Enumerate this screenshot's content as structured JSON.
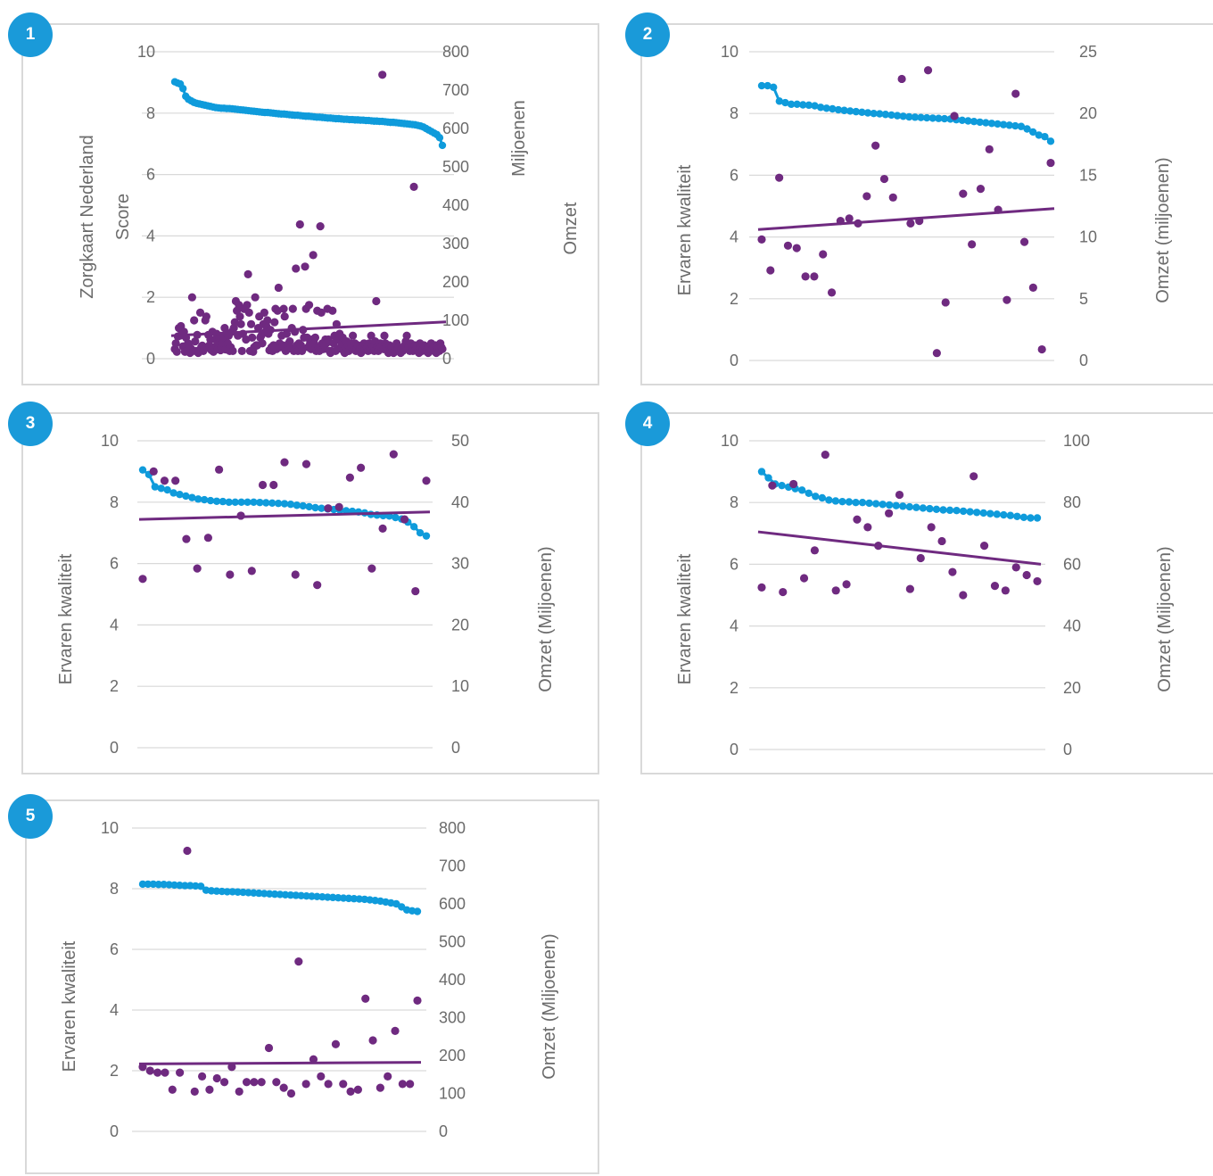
{
  "colors": {
    "quality": "#0f9bdb",
    "revenue": "#6f2a80",
    "grid": "#d9d9d9",
    "text": "#6b6b6b",
    "badge": "#1a9ad9"
  },
  "chart_data": [
    {
      "id": "1",
      "type": "scatter",
      "badge": "1",
      "ylabel_left": [
        "Zorgkaart Nederland",
        "Score"
      ],
      "ylabel_right": [
        "Miljoenen",
        "Omzet"
      ],
      "left_ticks": [
        "0",
        "2",
        "4",
        "6",
        "8",
        "10"
      ],
      "right_ticks": [
        "0",
        "100",
        "200",
        "300",
        "400",
        "500",
        "600",
        "700",
        "800"
      ],
      "ylim_left": [
        0,
        10
      ],
      "ylim_right": [
        0,
        800
      ],
      "series": [
        {
          "axis": "left",
          "style": "line-dots",
          "values": [
            9.02,
            8.98,
            8.95,
            8.8,
            8.55,
            8.45,
            8.4,
            8.35,
            8.32,
            8.3,
            8.28,
            8.26,
            8.24,
            8.22,
            8.2,
            8.18,
            8.17,
            8.16,
            8.16,
            8.15,
            8.15,
            8.14,
            8.13,
            8.12,
            8.11,
            8.1,
            8.09,
            8.08,
            8.07,
            8.06,
            8.05,
            8.04,
            8.03,
            8.02,
            8.02,
            8.01,
            8.0,
            7.99,
            7.98,
            7.97,
            7.97,
            7.96,
            7.95,
            7.94,
            7.93,
            7.93,
            7.92,
            7.91,
            7.9,
            7.9,
            7.89,
            7.88,
            7.87,
            7.87,
            7.86,
            7.85,
            7.84,
            7.84,
            7.83,
            7.82,
            7.82,
            7.81,
            7.8,
            7.8,
            7.79,
            7.79,
            7.78,
            7.78,
            7.77,
            7.77,
            7.76,
            7.76,
            7.75,
            7.74,
            7.74,
            7.73,
            7.73,
            7.72,
            7.71,
            7.7,
            7.7,
            7.69,
            7.68,
            7.67,
            7.66,
            7.65,
            7.64,
            7.63,
            7.62,
            7.6,
            7.58,
            7.55,
            7.5,
            7.45,
            7.4,
            7.35,
            7.3,
            7.2,
            6.95
          ]
        },
        {
          "axis": "right",
          "style": "dots",
          "values": [
            25,
            40,
            18,
            58,
            80,
            60,
            85,
            62,
            32,
            70,
            18,
            55,
            20,
            40,
            35,
            15,
            26,
            160,
            20,
            100,
            45,
            20,
            62,
            15,
            20,
            120,
            30,
            34,
            20,
            25,
            100,
            110,
            30,
            62,
            35,
            50,
            22,
            70,
            18,
            30,
            50,
            65,
            25,
            40,
            55,
            22,
            30,
            40,
            55,
            80,
            24,
            65,
            40,
            60,
            20,
            30,
            70,
            20,
            80,
            95,
            150,
            125,
            60,
            140,
            110,
            90,
            20,
            65,
            130,
            130,
            50,
            140,
            220,
            120,
            20,
            90,
            55,
            18,
            30,
            160,
            35,
            35,
            80,
            110,
            55,
            60,
            40,
            90,
            120,
            70,
            85,
            100,
            65,
            22,
            75,
            30,
            20,
            35,
            95,
            130,
            25,
            125,
            185,
            40,
            30,
            60,
            35,
            130,
            110,
            20,
            65,
            25,
            40,
            45,
            30,
            80,
            130,
            20,
            70,
            235,
            35,
            20,
            40,
            350,
            35,
            20,
            75,
            55,
            240,
            130,
            55,
            30,
            140,
            40,
            25,
            50,
            270,
            40,
            55,
            20,
            125,
            30,
            20,
            345,
            120,
            40,
            25,
            35,
            50,
            40,
            130,
            50,
            20,
            15,
            20,
            125,
            40,
            60,
            20,
            90,
            25,
            50,
            65,
            30,
            40,
            55,
            20,
            15,
            30,
            45,
            35,
            20,
            25,
            40,
            30,
            60,
            30,
            40,
            20,
            25,
            35,
            20,
            30,
            15,
            20,
            30,
            40,
            25,
            35,
            30,
            20,
            40,
            25,
            60,
            35,
            30,
            20,
            45,
            150,
            30,
            20,
            25,
            40,
            30,
            740,
            25,
            60,
            40,
            30,
            20,
            15,
            35,
            20,
            30,
            25,
            15,
            30,
            20,
            40,
            25,
            30,
            20,
            15,
            25,
            20,
            30,
            35,
            45,
            60,
            25,
            30,
            20,
            40,
            30,
            20,
            448,
            35,
            25,
            30,
            20,
            15,
            40,
            30,
            20,
            25,
            35,
            30,
            20,
            25,
            15,
            30,
            20,
            40,
            25,
            30,
            20,
            35,
            15,
            30,
            25,
            20,
            40,
            30,
            25
          ]
        },
        {
          "axis": "right",
          "style": "trend",
          "values": [
            60,
            96
          ]
        }
      ]
    },
    {
      "id": "2",
      "type": "scatter",
      "badge": "2",
      "ylabel_left": [
        "Ervaren kwaliteit"
      ],
      "ylabel_right": [
        "Omzet (miljoenen)"
      ],
      "left_ticks": [
        "0",
        "2",
        "4",
        "6",
        "8",
        "10"
      ],
      "right_ticks": [
        "0",
        "5",
        "10",
        "15",
        "20",
        "25"
      ],
      "ylim_left": [
        0,
        10
      ],
      "ylim_right": [
        0,
        25
      ],
      "series": [
        {
          "axis": "left",
          "style": "line-dots",
          "values": [
            8.9,
            8.9,
            8.85,
            8.4,
            8.35,
            8.3,
            8.3,
            8.28,
            8.27,
            8.25,
            8.2,
            8.17,
            8.15,
            8.12,
            8.1,
            8.08,
            8.06,
            8.04,
            8.02,
            8.0,
            7.99,
            7.97,
            7.95,
            7.93,
            7.91,
            7.89,
            7.88,
            7.87,
            7.86,
            7.85,
            7.84,
            7.83,
            7.82,
            7.8,
            7.78,
            7.76,
            7.74,
            7.72,
            7.7,
            7.68,
            7.66,
            7.64,
            7.62,
            7.6,
            7.58,
            7.5,
            7.4,
            7.3,
            7.25,
            7.1
          ]
        },
        {
          "axis": "right",
          "style": "dots",
          "values": [
            9.8,
            7.3,
            14.8,
            9.3,
            9.1,
            6.8,
            6.8,
            8.6,
            5.5,
            11.3,
            11.5,
            11.1,
            13.3,
            17.4,
            14.7,
            13.2,
            22.8,
            11.1,
            11.3,
            23.5,
            0.6,
            4.7,
            19.8,
            13.5,
            9.4,
            13.9,
            17.1,
            12.2,
            4.9,
            21.6,
            9.6,
            5.9,
            0.9,
            16
          ]
        },
        {
          "axis": "right",
          "style": "trend",
          "values": [
            10.6,
            12.3
          ]
        }
      ]
    },
    {
      "id": "3",
      "type": "scatter",
      "badge": "3",
      "ylabel_left": [
        "Ervaren kwaliteit"
      ],
      "ylabel_right": [
        "Omzet (Miljoenen)"
      ],
      "left_ticks": [
        "0",
        "2",
        "4",
        "6",
        "8",
        "10"
      ],
      "right_ticks": [
        "0",
        "10",
        "20",
        "30",
        "40",
        "50"
      ],
      "ylim_left": [
        0,
        10
      ],
      "ylim_right": [
        0,
        50
      ],
      "series": [
        {
          "axis": "left",
          "style": "line-dots",
          "values": [
            9.05,
            8.9,
            8.5,
            8.45,
            8.4,
            8.3,
            8.25,
            8.2,
            8.15,
            8.1,
            8.08,
            8.05,
            8.03,
            8.02,
            8.0,
            8.0,
            8.0,
            8.0,
            8.0,
            7.99,
            7.98,
            7.97,
            7.96,
            7.95,
            7.93,
            7.9,
            7.88,
            7.85,
            7.82,
            7.8,
            7.78,
            7.76,
            7.74,
            7.72,
            7.7,
            7.68,
            7.65,
            7.6,
            7.58,
            7.56,
            7.55,
            7.5,
            7.45,
            7.35,
            7.2,
            7.0,
            6.9
          ]
        },
        {
          "axis": "right",
          "style": "dots",
          "values": [
            27.5,
            45,
            43.5,
            43.5,
            34,
            29.2,
            34.2,
            45.3,
            28.2,
            37.8,
            28.8,
            42.8,
            42.8,
            46.5,
            28.2,
            46.2,
            26.5,
            39,
            39.2,
            44,
            45.6,
            29.2,
            35.7,
            47.8,
            37.2,
            25.5,
            43.5
          ]
        },
        {
          "axis": "right",
          "style": "trend",
          "values": [
            37.2,
            38.4
          ]
        }
      ]
    },
    {
      "id": "4",
      "type": "scatter",
      "badge": "4",
      "ylabel_left": [
        "Ervaren kwaliteit"
      ],
      "ylabel_right": [
        "Omzet (Miljoenen)"
      ],
      "left_ticks": [
        "0",
        "2",
        "4",
        "6",
        "8",
        "10"
      ],
      "right_ticks": [
        "0",
        "20",
        "40",
        "60",
        "80",
        "100"
      ],
      "ylim_left": [
        0,
        10
      ],
      "ylim_right": [
        0,
        100
      ],
      "series": [
        {
          "axis": "left",
          "style": "line-dots",
          "values": [
            9.0,
            8.8,
            8.6,
            8.55,
            8.5,
            8.45,
            8.4,
            8.3,
            8.2,
            8.15,
            8.08,
            8.05,
            8.03,
            8.02,
            8.0,
            8.0,
            7.98,
            7.96,
            7.94,
            7.92,
            7.9,
            7.88,
            7.86,
            7.84,
            7.82,
            7.8,
            7.78,
            7.76,
            7.75,
            7.74,
            7.72,
            7.7,
            7.68,
            7.66,
            7.64,
            7.62,
            7.6,
            7.58,
            7.55,
            7.52,
            7.5,
            7.5
          ]
        },
        {
          "axis": "right",
          "style": "dots",
          "values": [
            52.5,
            85.5,
            51,
            86,
            55.5,
            64.5,
            95.5,
            51.5,
            53.5,
            74.5,
            72,
            66,
            76.5,
            82.5,
            52,
            62,
            72,
            67.5,
            57.5,
            50,
            88.5,
            66,
            53,
            51.5,
            59,
            56.5,
            54.5
          ]
        },
        {
          "axis": "right",
          "style": "trend",
          "values": [
            70.5,
            60
          ]
        }
      ]
    },
    {
      "id": "5",
      "type": "scatter",
      "badge": "5",
      "ylabel_left": [
        "Ervaren kwaliteit"
      ],
      "ylabel_right": [
        "Omzet (Miljoenen)"
      ],
      "left_ticks": [
        "0",
        "2",
        "4",
        "6",
        "8",
        "10"
      ],
      "right_ticks": [
        "0",
        "100",
        "200",
        "300",
        "400",
        "500",
        "600",
        "700",
        "800"
      ],
      "ylim_left": [
        0,
        10
      ],
      "ylim_right": [
        0,
        800
      ],
      "series": [
        {
          "axis": "left",
          "style": "line-dots",
          "values": [
            8.15,
            8.15,
            8.15,
            8.14,
            8.14,
            8.13,
            8.12,
            8.11,
            8.1,
            8.1,
            8.09,
            8.08,
            7.95,
            7.93,
            7.92,
            7.91,
            7.9,
            7.9,
            7.89,
            7.88,
            7.87,
            7.86,
            7.85,
            7.84,
            7.83,
            7.82,
            7.81,
            7.8,
            7.79,
            7.78,
            7.77,
            7.76,
            7.75,
            7.74,
            7.73,
            7.72,
            7.71,
            7.7,
            7.69,
            7.68,
            7.67,
            7.66,
            7.65,
            7.63,
            7.61,
            7.59,
            7.56,
            7.53,
            7.5,
            7.4,
            7.3,
            7.27,
            7.25
          ]
        },
        {
          "axis": "right",
          "style": "dots",
          "values": [
            170,
            160,
            155,
            155,
            110,
            155,
            740,
            105,
            145,
            110,
            140,
            130,
            170,
            105,
            130,
            130,
            130,
            220,
            130,
            115,
            100,
            448,
            125,
            190,
            145,
            125,
            230,
            125,
            105,
            110,
            350,
            240,
            115,
            145,
            265,
            125,
            125,
            345
          ]
        },
        {
          "axis": "right",
          "style": "trend",
          "values": [
            178,
            182
          ]
        }
      ]
    }
  ]
}
